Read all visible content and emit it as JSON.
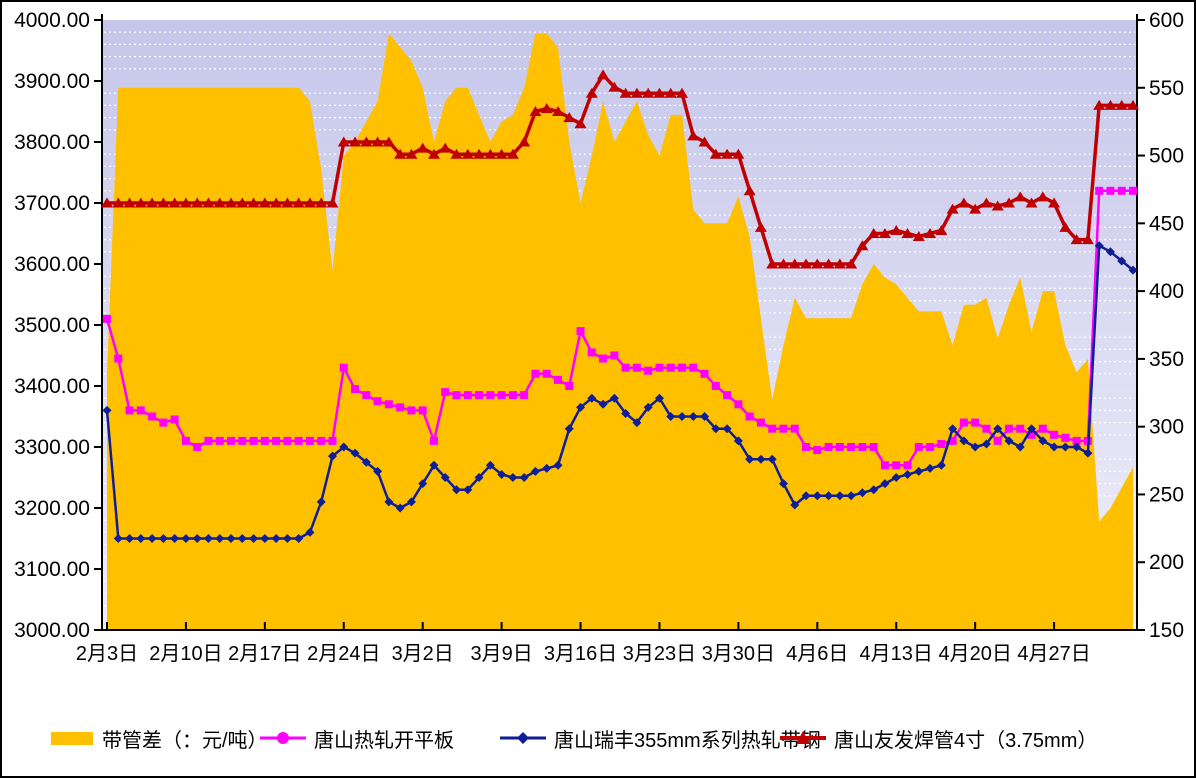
{
  "chart_data": {
    "type": "area",
    "subtype": "combo-area-lines-dual-axis",
    "n_points": 92,
    "label_every": 7,
    "x_labels": [
      "2月3日",
      "2月10日",
      "2月17日",
      "2月24日",
      "3月2日",
      "3月9日",
      "3月16日",
      "3月23日",
      "3月30日",
      "4月6日",
      "4月13日",
      "4月20日",
      "4月27日"
    ],
    "left_axis": {
      "min": 3000,
      "max": 4000,
      "step": 100,
      "ticks": [
        "4000.00",
        "3900.00",
        "3800.00",
        "3700.00",
        "3600.00",
        "3500.00",
        "3400.00",
        "3300.00",
        "3200.00",
        "3100.00",
        "3000.00"
      ]
    },
    "right_axis": {
      "min": 150,
      "max": 600,
      "step": 50,
      "ticks": [
        "600",
        "550",
        "500",
        "450",
        "400",
        "350",
        "300",
        "250",
        "200",
        "150"
      ]
    },
    "plot_bg_top": "#c6c6ea",
    "plot_bg_bottom": "#f0f0fb",
    "grid_dot_color": "#ffffff",
    "series": [
      {
        "name": "带管差（：元/吨）",
        "type": "area",
        "axis": "right",
        "color": "#FFC000",
        "marker": "none",
        "values": [
          340,
          550,
          550,
          550,
          550,
          550,
          550,
          550,
          550,
          550,
          550,
          550,
          550,
          550,
          550,
          550,
          550,
          550,
          540,
          490,
          415,
          500,
          510,
          525,
          540,
          590,
          580,
          570,
          550,
          510,
          540,
          550,
          550,
          530,
          510,
          525,
          530,
          550,
          590,
          590,
          580,
          510,
          465,
          500,
          540,
          510,
          525,
          540,
          515,
          500,
          530,
          530,
          460,
          450,
          450,
          450,
          470,
          440,
          380,
          320,
          360,
          395,
          380,
          380,
          380,
          380,
          380,
          405,
          420,
          410,
          405,
          395,
          385,
          385,
          385,
          360,
          390,
          390,
          395,
          365,
          390,
          410,
          370,
          400,
          400,
          360,
          340,
          350,
          230,
          240,
          255,
          270
        ]
      },
      {
        "name": "唐山热轧开平板",
        "type": "line",
        "axis": "left",
        "color": "#FF00FF",
        "marker": "square",
        "values": [
          3510,
          3445,
          3360,
          3360,
          3350,
          3340,
          3345,
          3310,
          3300,
          3310,
          3310,
          3310,
          3310,
          3310,
          3310,
          3310,
          3310,
          3310,
          3310,
          3310,
          3310,
          3430,
          3395,
          3385,
          3375,
          3370,
          3365,
          3360,
          3360,
          3310,
          3390,
          3385,
          3385,
          3385,
          3385,
          3385,
          3385,
          3385,
          3420,
          3420,
          3410,
          3400,
          3490,
          3455,
          3445,
          3450,
          3430,
          3430,
          3425,
          3430,
          3430,
          3430,
          3430,
          3420,
          3400,
          3385,
          3370,
          3350,
          3340,
          3330,
          3330,
          3330,
          3300,
          3295,
          3300,
          3300,
          3300,
          3300,
          3300,
          3270,
          3270,
          3270,
          3300,
          3300,
          3305,
          3310,
          3340,
          3340,
          3330,
          3310,
          3330,
          3330,
          3320,
          3330,
          3320,
          3315,
          3310,
          3310,
          3720,
          3720,
          3720,
          3720
        ]
      },
      {
        "name": "唐山瑞丰355mm系列热轧带钢",
        "type": "line",
        "axis": "left",
        "color": "#0D1E96",
        "marker": "diamond",
        "values": [
          3360,
          3150,
          3150,
          3150,
          3150,
          3150,
          3150,
          3150,
          3150,
          3150,
          3150,
          3150,
          3150,
          3150,
          3150,
          3150,
          3150,
          3150,
          3160,
          3210,
          3285,
          3300,
          3290,
          3275,
          3260,
          3210,
          3200,
          3210,
          3240,
          3270,
          3250,
          3230,
          3230,
          3250,
          3270,
          3255,
          3250,
          3250,
          3260,
          3265,
          3270,
          3330,
          3365,
          3380,
          3370,
          3380,
          3355,
          3340,
          3365,
          3380,
          3350,
          3350,
          3350,
          3350,
          3330,
          3330,
          3310,
          3280,
          3280,
          3280,
          3240,
          3205,
          3220,
          3220,
          3220,
          3220,
          3220,
          3225,
          3230,
          3240,
          3250,
          3255,
          3260,
          3265,
          3270,
          3330,
          3310,
          3300,
          3305,
          3330,
          3310,
          3300,
          3330,
          3310,
          3300,
          3300,
          3300,
          3290,
          3630,
          3620,
          3605,
          3590
        ]
      },
      {
        "name": "唐山友发焊管4寸（3.75mm）",
        "type": "line",
        "axis": "left",
        "color": "#C00000",
        "marker": "triangle",
        "values": [
          3700,
          3700,
          3700,
          3700,
          3700,
          3700,
          3700,
          3700,
          3700,
          3700,
          3700,
          3700,
          3700,
          3700,
          3700,
          3700,
          3700,
          3700,
          3700,
          3700,
          3700,
          3800,
          3800,
          3800,
          3800,
          3800,
          3780,
          3780,
          3790,
          3780,
          3790,
          3780,
          3780,
          3780,
          3780,
          3780,
          3780,
          3800,
          3850,
          3855,
          3850,
          3840,
          3830,
          3880,
          3910,
          3890,
          3880,
          3880,
          3880,
          3880,
          3880,
          3880,
          3810,
          3800,
          3780,
          3780,
          3780,
          3720,
          3660,
          3600,
          3600,
          3600,
          3600,
          3600,
          3600,
          3600,
          3600,
          3630,
          3650,
          3650,
          3655,
          3650,
          3645,
          3650,
          3655,
          3690,
          3700,
          3690,
          3700,
          3695,
          3700,
          3710,
          3700,
          3710,
          3700,
          3660,
          3640,
          3640,
          3860,
          3860,
          3860,
          3860
        ]
      }
    ],
    "legend": {
      "items": [
        {
          "label": "带管差（：元/吨）",
          "swatch": "gold-rect"
        },
        {
          "label": "唐山热轧开平板",
          "swatch": "magenta-line-circle"
        },
        {
          "label": "唐山瑞丰355mm系列热轧带钢",
          "swatch": "navy-line-diamond"
        },
        {
          "label": "唐山友发焊管4寸（3.75mm）",
          "swatch": "darkred-line-triangle"
        }
      ]
    }
  }
}
